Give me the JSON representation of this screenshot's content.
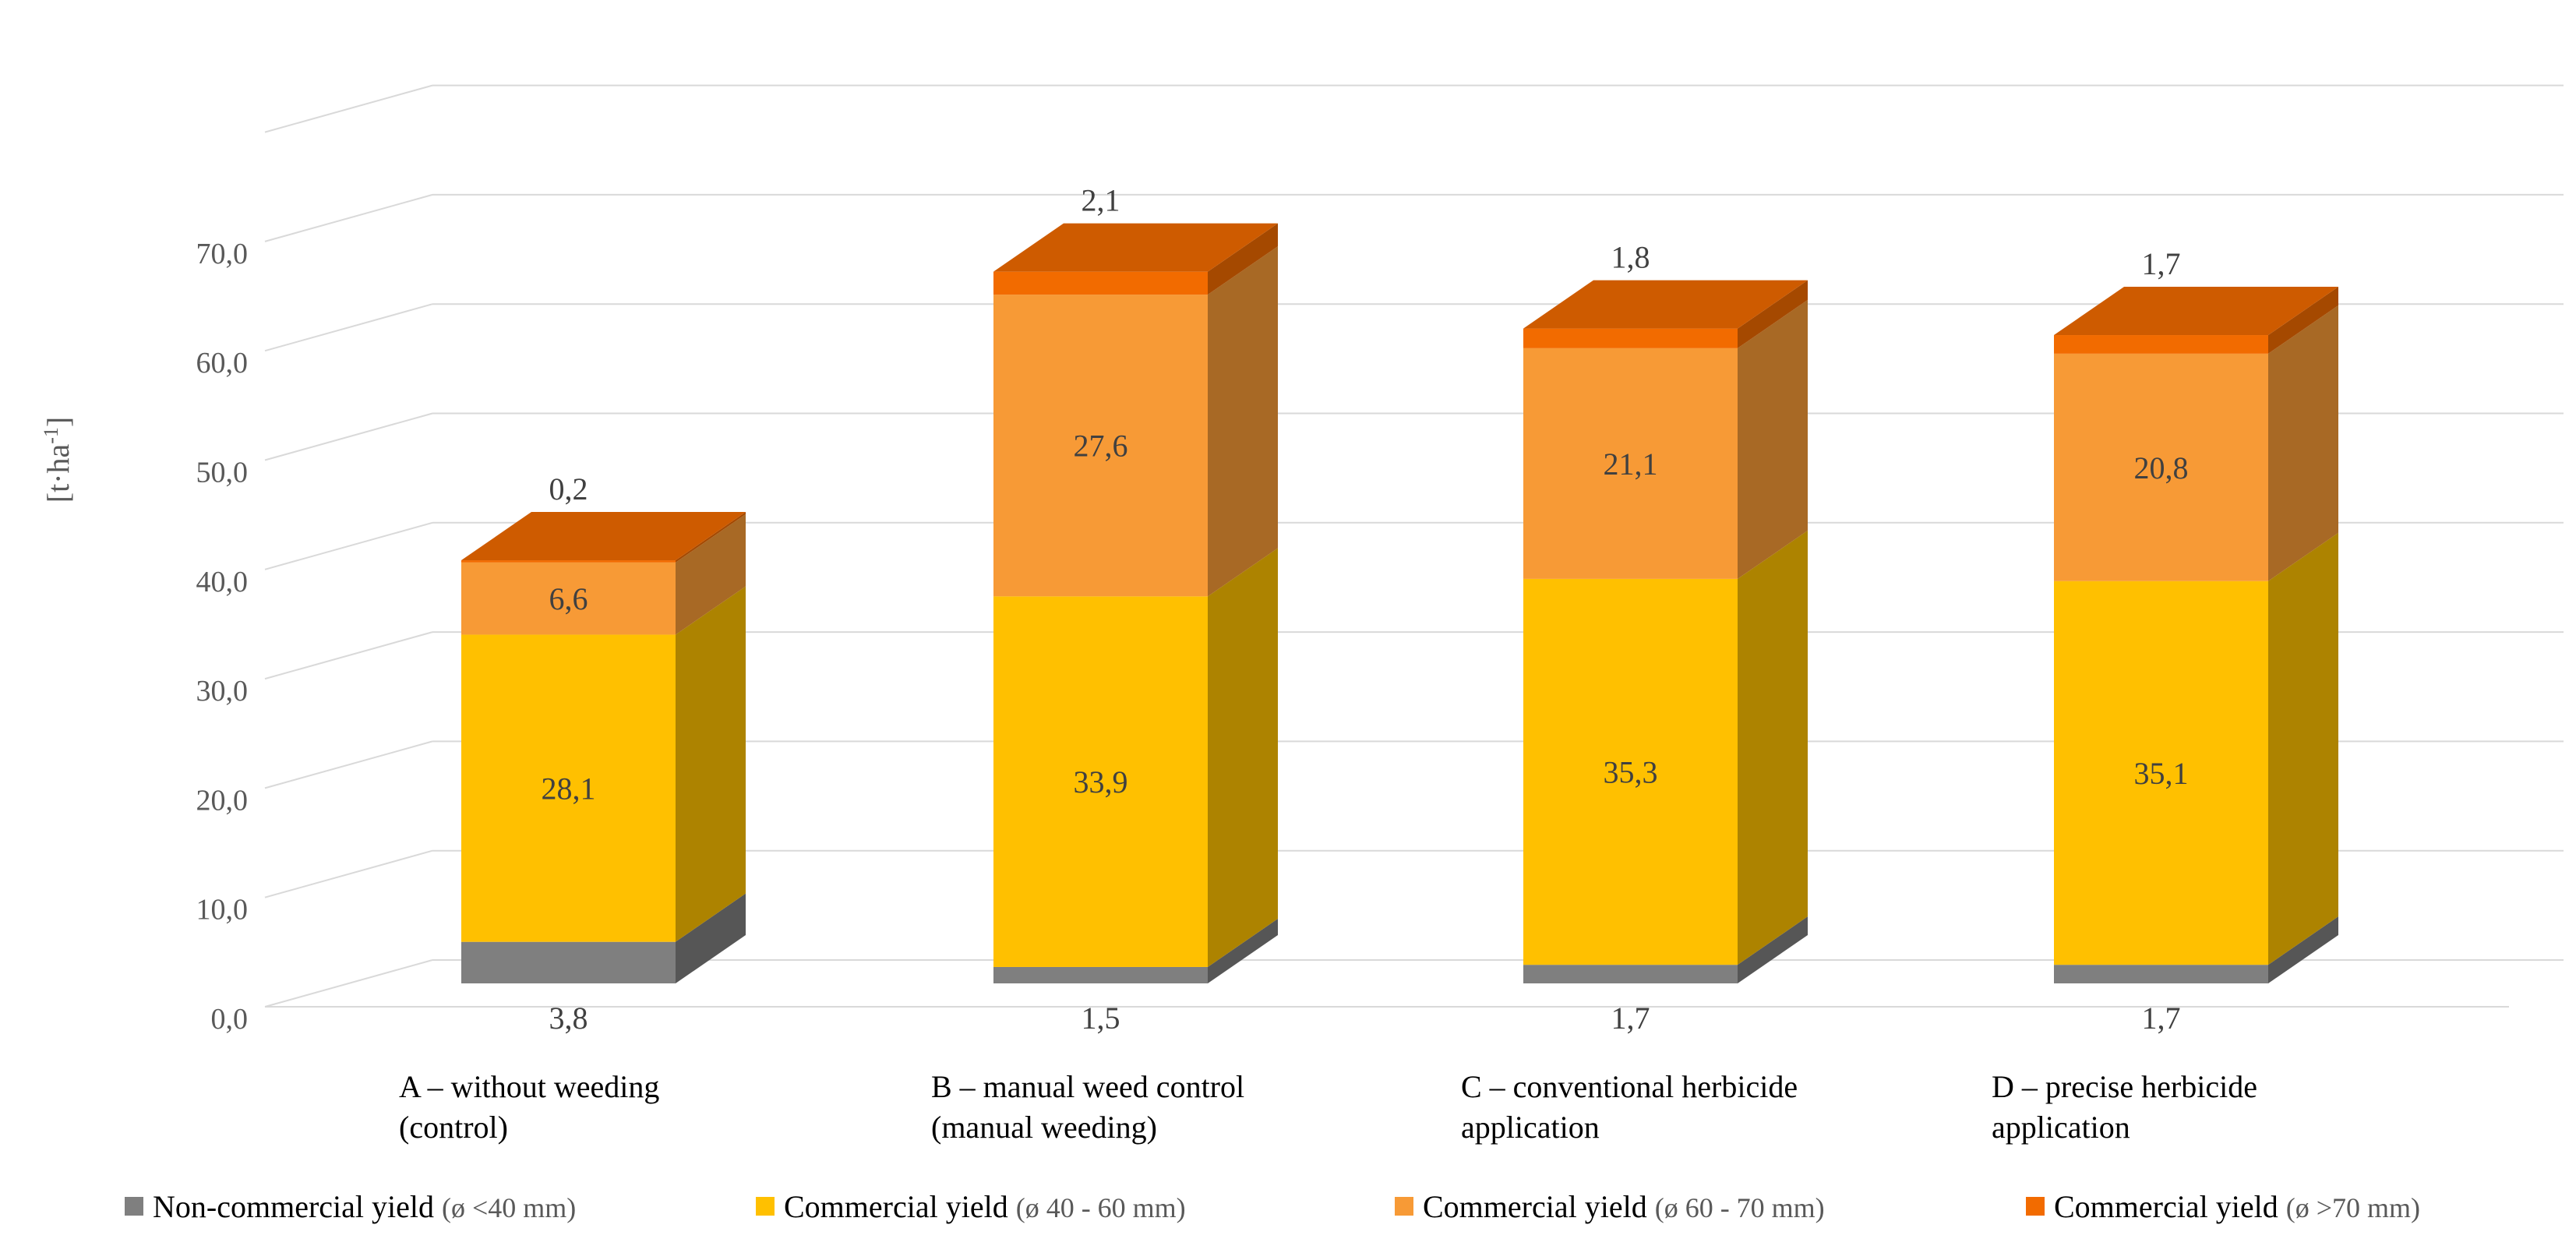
{
  "chart_data": {
    "type": "bar",
    "stacked": true,
    "three_d": true,
    "categories": [
      "A – without weeding (control)",
      "B – manual weed control (manual weeding)",
      "C – conventional herbicide application",
      "D – precise herbicide application"
    ],
    "category_lines": [
      [
        "A – without weeding",
        "(control)"
      ],
      [
        "B – manual weed control",
        "(manual weeding)"
      ],
      [
        "C – conventional herbicide",
        "application"
      ],
      [
        "D – precise herbicide",
        "application"
      ]
    ],
    "series": [
      {
        "name": "Non-commercial yield",
        "detail": "(ø <40 mm)",
        "values": [
          3.8,
          1.5,
          1.7,
          1.7
        ],
        "labels": [
          "3,8",
          "1,5",
          "1,7",
          "1,7"
        ],
        "color": "#7f7f7f"
      },
      {
        "name": "Commercial yield",
        "detail": "(ø 40 - 60 mm)",
        "values": [
          28.1,
          33.9,
          35.3,
          35.1
        ],
        "labels": [
          "28,1",
          "33,9",
          "35,3",
          "35,1"
        ],
        "color": "#ffc000"
      },
      {
        "name": "Commercial yield",
        "detail": "(ø 60 - 70 mm)",
        "values": [
          6.6,
          27.6,
          21.1,
          20.8
        ],
        "labels": [
          "6,6",
          "27,6",
          "21,1",
          "20,8"
        ],
        "color": "#f79a36"
      },
      {
        "name": "Commercial yield",
        "detail": "(ø >70 mm)",
        "values": [
          0.2,
          2.1,
          1.8,
          1.7
        ],
        "labels": [
          "0,2",
          "2,1",
          "1,8",
          "1,7"
        ],
        "color": "#f26b00"
      }
    ],
    "ylabel": "[t·ha-1]",
    "y_ticks": [
      "0,0",
      "10,0",
      "20,0",
      "30,0",
      "40,0",
      "50,0",
      "60,0",
      "70,0"
    ],
    "ylim": [
      0,
      70
    ],
    "grid": true,
    "legend_position": "bottom"
  }
}
